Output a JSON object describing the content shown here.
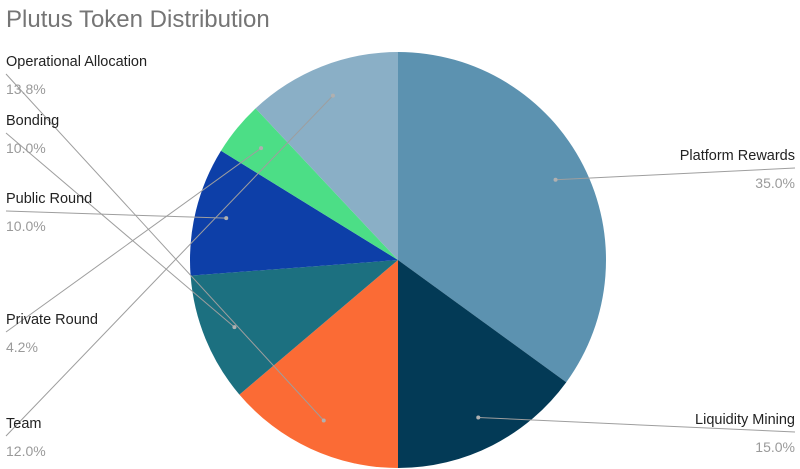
{
  "chart_data": {
    "type": "pie",
    "title": "Plutus Token Distribution",
    "slices": [
      {
        "label": "Platform Rewards",
        "value": 35.0,
        "value_label": "35.0%",
        "color": "#5c92b0",
        "label_side": "right"
      },
      {
        "label": "Liquidity Mining",
        "value": 15.0,
        "value_label": "15.0%",
        "color": "#033a56",
        "label_side": "right"
      },
      {
        "label": "Operational Allocation",
        "value": 13.8,
        "value_label": "13.8%",
        "color": "#fb6b35",
        "label_side": "left"
      },
      {
        "label": "Bonding",
        "value": 10.0,
        "value_label": "10.0%",
        "color": "#1c7080",
        "label_side": "left"
      },
      {
        "label": "Public Round",
        "value": 10.0,
        "value_label": "10.0%",
        "color": "#0d3fa8",
        "label_side": "left"
      },
      {
        "label": "Private Round",
        "value": 4.2,
        "value_label": "4.2%",
        "color": "#4cde86",
        "label_side": "left"
      },
      {
        "label": "Team",
        "value": 12.0,
        "value_label": "12.0%",
        "color": "#8aafc6",
        "label_side": "left"
      }
    ],
    "legend": "none",
    "start_angle": "12 o'clock",
    "direction": "clockwise"
  }
}
